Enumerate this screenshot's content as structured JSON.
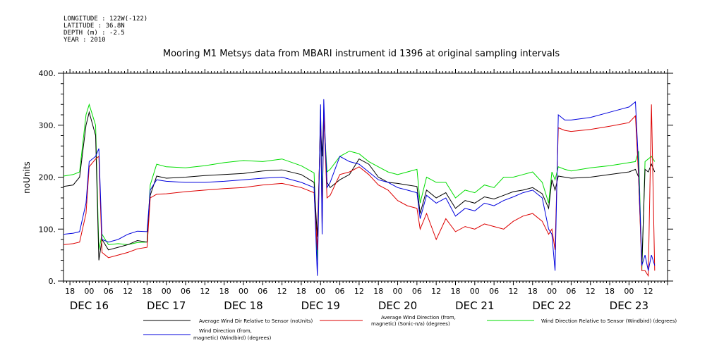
{
  "header": {
    "meta_lines": [
      "LONGITUDE : 122W(-122)",
      "LATITUDE : 36.8N",
      "DEPTH (m) : -2.5",
      "YEAR : 2010"
    ],
    "title": "Mooring M1 Metsys data from MBARI instrument id 1396 at original sampling intervals"
  },
  "chart_data": {
    "type": "line",
    "title": "Mooring M1 Metsys data from MBARI instrument id 1396 at original sampling intervals",
    "xlabel": "",
    "ylabel": "noUnits",
    "ylim": [
      0,
      400
    ],
    "y_ticks": [
      0,
      100,
      200,
      300,
      400
    ],
    "y_tick_labels": [
      "0.",
      "100.",
      "200.",
      "300.",
      "400."
    ],
    "xlim": [
      -8,
      180
    ],
    "x_units": "hours since DEC 16 00:00, 2010",
    "x_tick_hours": [
      -6,
      0,
      6,
      12,
      18,
      24,
      30,
      36,
      42,
      48,
      54,
      60,
      66,
      72,
      78,
      84,
      90,
      96,
      102,
      108,
      114,
      120,
      126,
      132,
      138,
      144,
      150,
      156,
      162,
      168,
      174
    ],
    "x_tick_labels": [
      "18",
      "00",
      "06",
      "12",
      "18",
      "00",
      "06",
      "12",
      "18",
      "00",
      "06",
      "12",
      "18",
      "00",
      "06",
      "12",
      "18",
      "00",
      "06",
      "12",
      "18",
      "00",
      "06",
      "12",
      "18",
      "00",
      "06",
      "12",
      "18",
      "00",
      "12"
    ],
    "day_labels": [
      {
        "hour": 0,
        "label": "DEC 16"
      },
      {
        "hour": 24,
        "label": "DEC 17"
      },
      {
        "hour": 48,
        "label": "DEC 18"
      },
      {
        "hour": 72,
        "label": "DEC 19"
      },
      {
        "hour": 96,
        "label": "DEC 20"
      },
      {
        "hour": 120,
        "label": "DEC 21"
      },
      {
        "hour": 144,
        "label": "DEC 22"
      },
      {
        "hour": 168,
        "label": "DEC 23"
      }
    ],
    "grid": false,
    "legend": "bottom",
    "x": [
      -8,
      -5,
      -3,
      -1,
      0,
      2,
      3,
      4,
      6,
      9,
      12,
      15,
      18,
      19,
      21,
      24,
      30,
      36,
      42,
      48,
      54,
      60,
      66,
      70,
      71,
      72,
      72.5,
      73,
      74,
      75,
      78,
      81,
      84,
      87,
      90,
      93,
      96,
      99,
      102,
      103,
      105,
      108,
      111,
      114,
      117,
      120,
      123,
      126,
      129,
      132,
      135,
      138,
      141,
      143,
      144,
      145,
      146,
      148,
      150,
      156,
      162,
      168,
      170,
      171,
      172,
      173,
      174,
      175,
      176
    ],
    "series": [
      {
        "name": "Average Wind Dir Relative to Sensor (noUnits)",
        "color": "#000000",
        "values": [
          182,
          185,
          200,
          300,
          325,
          280,
          40,
          80,
          60,
          65,
          70,
          78,
          75,
          165,
          202,
          198,
          200,
          203,
          205,
          207,
          212,
          214,
          205,
          190,
          85,
          300,
          240,
          320,
          190,
          180,
          195,
          205,
          235,
          225,
          200,
          190,
          188,
          185,
          182,
          130,
          175,
          160,
          170,
          140,
          155,
          150,
          162,
          158,
          165,
          172,
          175,
          180,
          168,
          140,
          195,
          175,
          202,
          200,
          198,
          200,
          205,
          210,
          215,
          200,
          30,
          215,
          210,
          225,
          210
        ]
      },
      {
        "name": "Average Wind Direction (from, magnetic) (Sonic-n/a) (degrees)",
        "color": "#dd0000",
        "values": [
          70,
          72,
          75,
          130,
          220,
          235,
          240,
          55,
          45,
          50,
          55,
          62,
          65,
          160,
          167,
          168,
          172,
          175,
          178,
          180,
          185,
          188,
          180,
          170,
          60,
          320,
          110,
          330,
          160,
          165,
          205,
          210,
          220,
          205,
          185,
          175,
          155,
          145,
          140,
          100,
          130,
          80,
          120,
          95,
          105,
          100,
          110,
          105,
          100,
          115,
          125,
          130,
          115,
          90,
          100,
          60,
          295,
          290,
          288,
          292,
          298,
          305,
          318,
          200,
          20,
          20,
          10,
          340,
          20
        ]
      },
      {
        "name": "Wind Direction Relative to Sensor (Windbird) (degrees)",
        "color": "#00dd00",
        "values": [
          202,
          205,
          210,
          320,
          340,
          300,
          60,
          90,
          70,
          72,
          70,
          74,
          75,
          185,
          225,
          220,
          218,
          222,
          228,
          232,
          230,
          235,
          222,
          208,
          40,
          330,
          150,
          320,
          210,
          215,
          240,
          250,
          245,
          230,
          220,
          210,
          205,
          210,
          215,
          150,
          200,
          190,
          190,
          160,
          175,
          170,
          185,
          180,
          200,
          200,
          205,
          210,
          190,
          150,
          210,
          195,
          220,
          215,
          212,
          218,
          222,
          228,
          230,
          250,
          20,
          230,
          235,
          240,
          230
        ]
      },
      {
        "name": "Wind Direction (from, magnetic) (Windbird) (degrees)",
        "color": "#0000dd",
        "values": [
          90,
          92,
          95,
          150,
          230,
          240,
          255,
          80,
          75,
          80,
          90,
          96,
          95,
          175,
          195,
          192,
          190,
          190,
          192,
          195,
          198,
          200,
          190,
          180,
          10,
          340,
          90,
          350,
          180,
          190,
          240,
          230,
          225,
          210,
          195,
          190,
          180,
          175,
          170,
          120,
          165,
          150,
          160,
          125,
          140,
          135,
          150,
          145,
          155,
          162,
          170,
          175,
          160,
          100,
          90,
          20,
          320,
          310,
          310,
          315,
          325,
          335,
          345,
          220,
          30,
          50,
          20,
          50,
          30
        ]
      }
    ]
  },
  "legend": {
    "items": [
      {
        "label": "Average Wind Dir Relative to Sensor (noUnits)",
        "color": "#000000"
      },
      {
        "label": "Average Wind Direction (from, magnetic) (Sonic-n/a) (degrees)",
        "color": "#dd0000"
      },
      {
        "label": "Wind Direction Relative to Sensor (Windbird) (degrees)",
        "color": "#00dd00"
      },
      {
        "label": "Wind Direction (from, magnetic) (Windbird) (degrees)",
        "color": "#0000dd"
      }
    ]
  }
}
